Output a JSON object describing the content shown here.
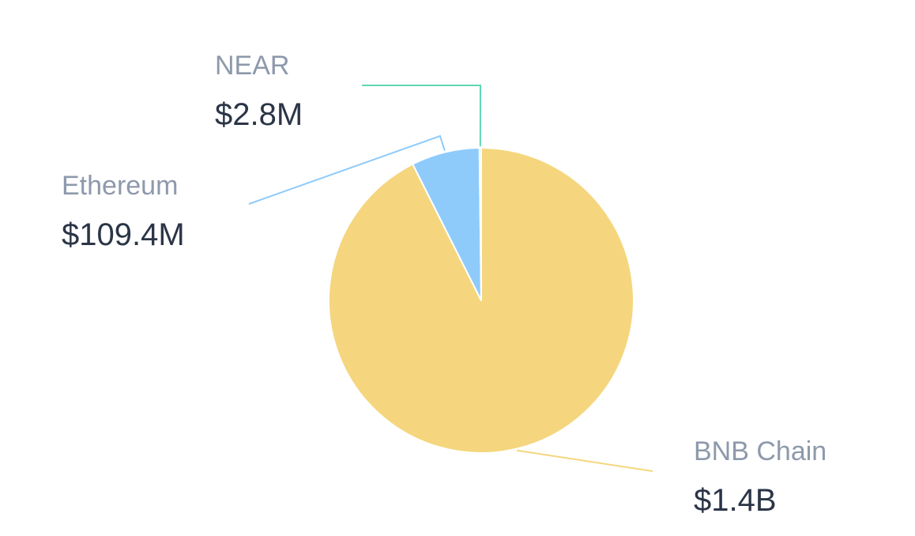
{
  "chart_data": {
    "type": "pie",
    "categories": [
      "BNB Chain",
      "Ethereum",
      "NEAR"
    ],
    "values": [
      1400000000,
      109400000,
      2800000
    ],
    "value_labels": [
      "$1.4B",
      "$109.4M",
      "$2.8M"
    ],
    "colors": [
      "#f5d67e",
      "#8ecbfb",
      "#5fd6b5"
    ]
  }
}
